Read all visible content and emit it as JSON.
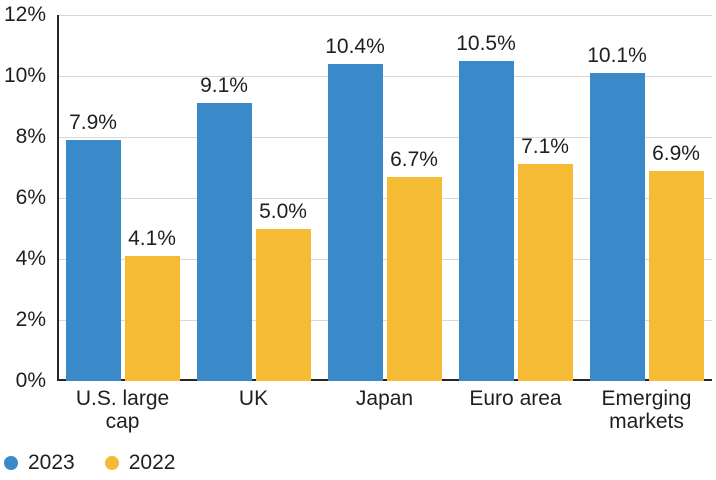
{
  "colors": {
    "series_2023": "#3A8ACA",
    "series_2022": "#F6BB35",
    "text": "#1F1F1F",
    "gridline": "#D8D8D8",
    "axis": "#262626",
    "background": "#FFFFFF"
  },
  "chart_data": {
    "type": "bar",
    "title": "",
    "xlabel": "",
    "ylabel": "",
    "categories": [
      "U.S. large\ncap",
      "UK",
      "Japan",
      "Euro area",
      "Emerging\nmarkets"
    ],
    "series": [
      {
        "name": "2023",
        "color": "#3A8ACA",
        "values": [
          7.9,
          9.1,
          10.4,
          10.5,
          10.1
        ],
        "labels": [
          "7.9%",
          "9.1%",
          "10.4%",
          "10.5%",
          "10.1%"
        ]
      },
      {
        "name": "2022",
        "color": "#F6BB35",
        "values": [
          4.1,
          5.0,
          6.7,
          7.1,
          6.9
        ],
        "labels": [
          "4.1%",
          "5.0%",
          "6.7%",
          "7.1%",
          "6.9%"
        ]
      }
    ],
    "ylim": [
      0,
      12
    ],
    "ytick_step": 2,
    "ytick_labels": [
      "0%",
      "2%",
      "4%",
      "6%",
      "8%",
      "10%",
      "12%"
    ],
    "grid": true,
    "legend_position": "bottom-left"
  }
}
